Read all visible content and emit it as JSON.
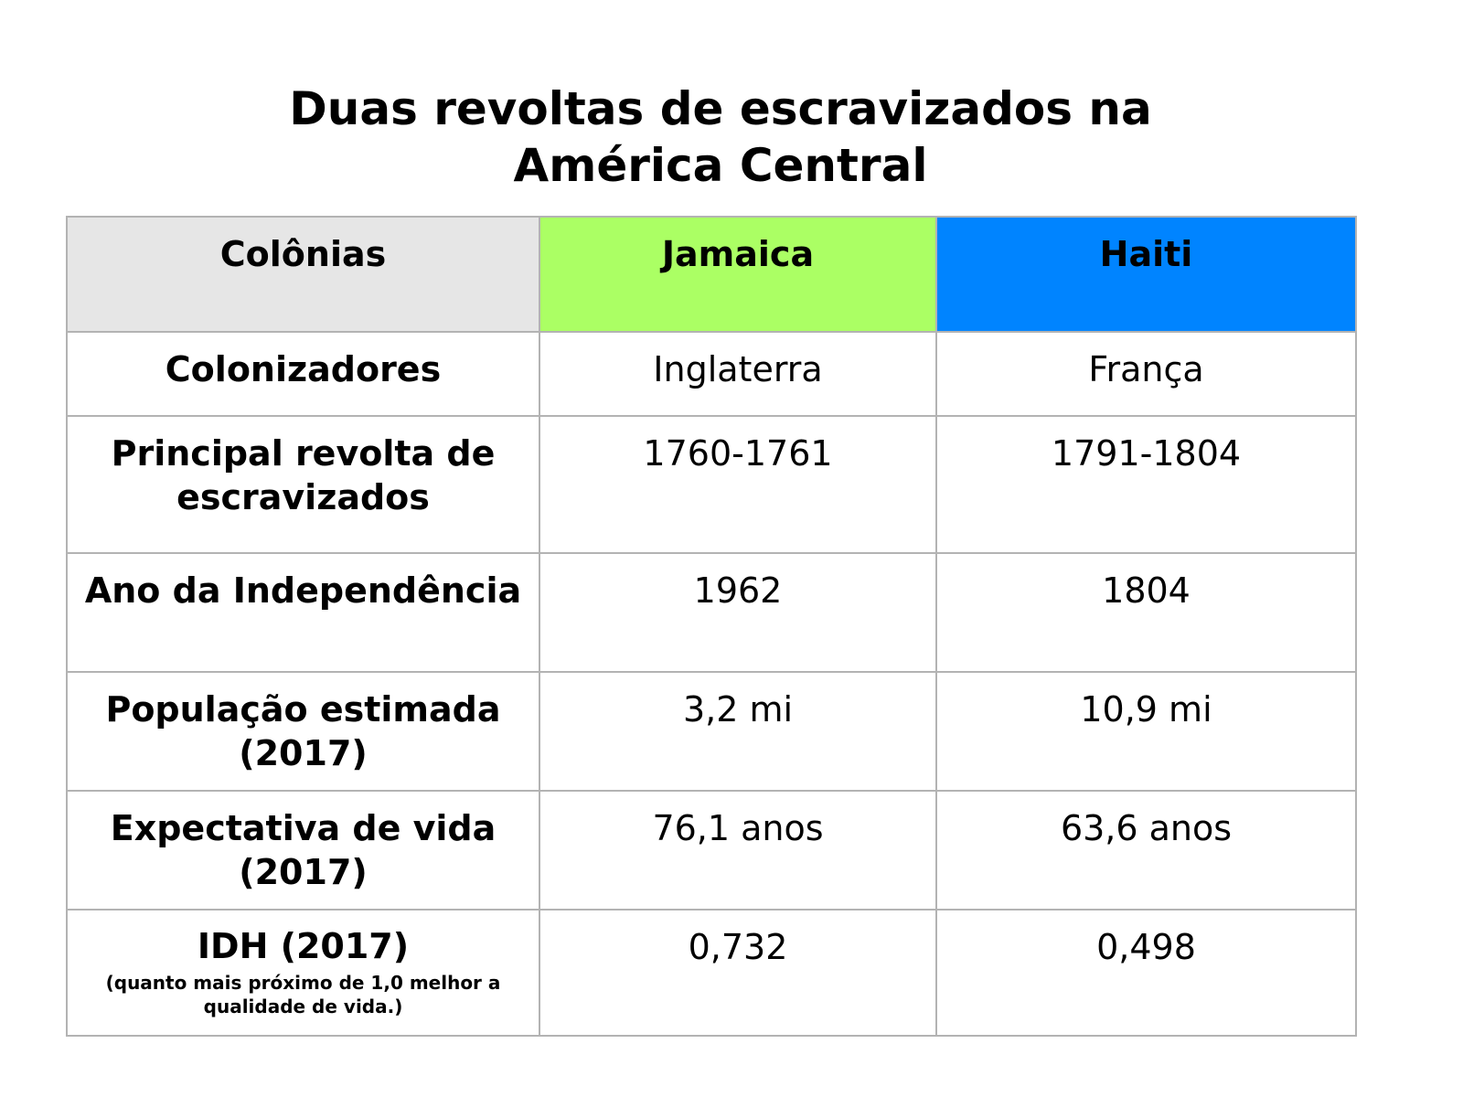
{
  "title": {
    "line1": "Duas revoltas de escravizados na",
    "line2": "América Central"
  },
  "colors": {
    "header_label_bg": "#e6e6e6",
    "jamaica_bg": "#abff64",
    "haiti_bg": "#0084ff",
    "border": "#b3b3b3"
  },
  "table": {
    "headers": {
      "label": "Colônias",
      "jamaica": "Jamaica",
      "haiti": "Haiti"
    },
    "rows": [
      {
        "label": "Colonizadores",
        "jamaica": "Inglaterra",
        "haiti": "França"
      },
      {
        "label": "Principal revolta de escravizados",
        "jamaica": "1760-1761",
        "haiti": "1791-1804"
      },
      {
        "label": "Ano da Independência",
        "jamaica": "1962",
        "haiti": "1804"
      },
      {
        "label": "População estimada (2017)",
        "jamaica": "3,2 mi",
        "haiti": "10,9 mi"
      },
      {
        "label": "Expectativa de vida (2017)",
        "jamaica": "76,1 anos",
        "haiti": "63,6 anos"
      },
      {
        "label": "IDH  (2017)",
        "note": "(quanto mais próximo de 1,0 melhor a qualidade de vida.)",
        "jamaica": "0,732",
        "haiti": "0,498"
      }
    ]
  }
}
